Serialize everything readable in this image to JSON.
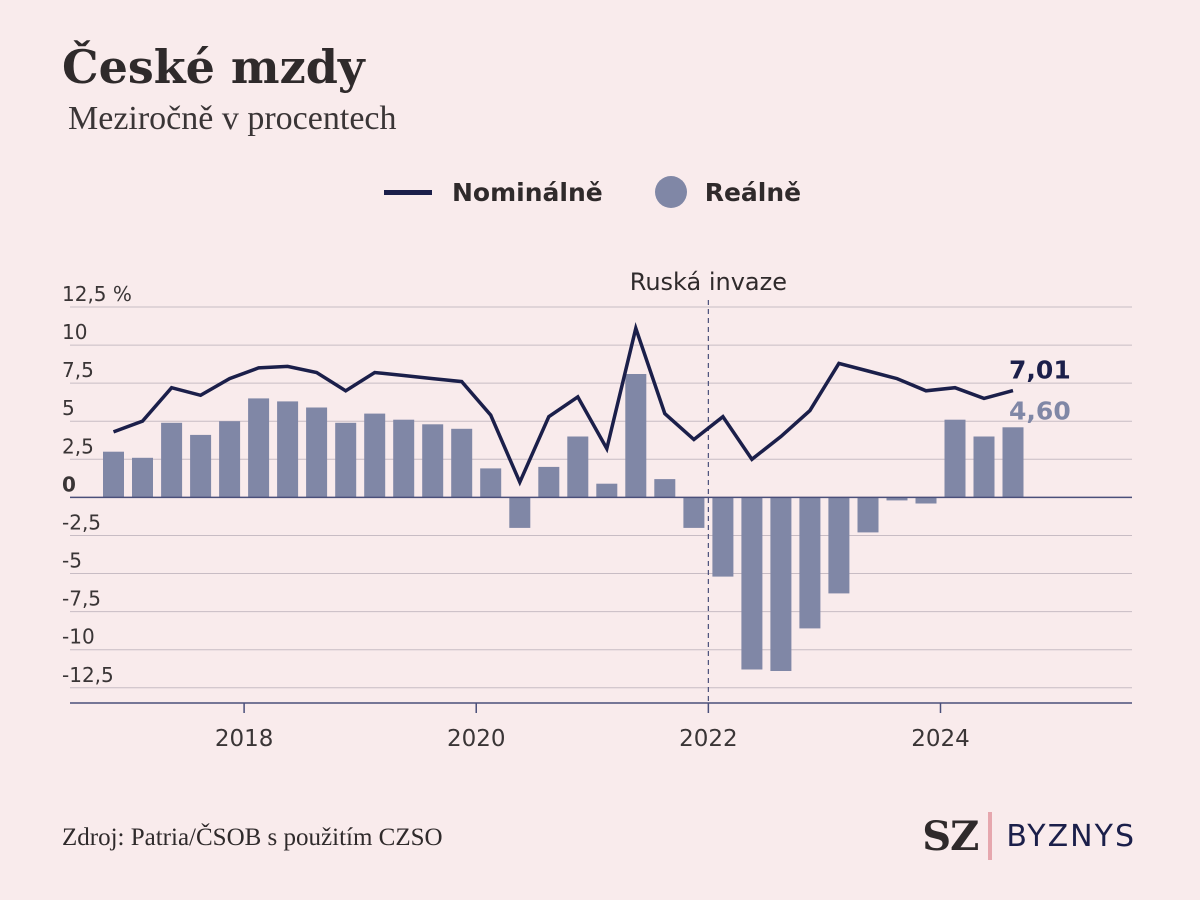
{
  "header": {
    "title": "České mzdy",
    "subtitle": "Meziročně v procentech"
  },
  "legend": {
    "nominal_label": "Nominálně",
    "real_label": "Reálně"
  },
  "colors": {
    "background": "#f9ebec",
    "nominal_line": "#1b1f4a",
    "real_bar": "#8087a6",
    "grid": "#c8bcc4",
    "axis": "#4a4f7a",
    "brand_bar": "#e6a7ae"
  },
  "chart_data": {
    "type": "bar",
    "title": "České mzdy",
    "subtitle": "Meziročně v procentech",
    "ylim": [
      -13.5,
      12.5
    ],
    "y_ticks": [
      {
        "value": 12.5,
        "label": "12,5 %"
      },
      {
        "value": 10,
        "label": "10"
      },
      {
        "value": 7.5,
        "label": "7,5"
      },
      {
        "value": 5,
        "label": "5"
      },
      {
        "value": 2.5,
        "label": "2,5"
      },
      {
        "value": 0,
        "label": "0"
      },
      {
        "value": -2.5,
        "label": "-2,5"
      },
      {
        "value": -5,
        "label": "-5"
      },
      {
        "value": -7.5,
        "label": "-7,5"
      },
      {
        "value": -10,
        "label": "-10"
      },
      {
        "value": -12.5,
        "label": "-12,5"
      }
    ],
    "xlim": [
      2016.5,
      2025.65
    ],
    "x_ticks": [
      {
        "value": 2018,
        "label": "2018"
      },
      {
        "value": 2020,
        "label": "2020"
      },
      {
        "value": 2022,
        "label": "2022"
      },
      {
        "value": 2024,
        "label": "2024"
      }
    ],
    "grid": true,
    "legend_position": "top-center",
    "quarters": [
      2016.875,
      2017.125,
      2017.375,
      2017.625,
      2017.875,
      2018.125,
      2018.375,
      2018.625,
      2018.875,
      2019.125,
      2019.375,
      2019.625,
      2019.875,
      2020.125,
      2020.375,
      2020.625,
      2020.875,
      2021.125,
      2021.375,
      2021.625,
      2021.875,
      2022.125,
      2022.375,
      2022.625,
      2022.875,
      2023.125,
      2023.375,
      2023.625,
      2023.875,
      2024.125,
      2024.375,
      2024.625
    ],
    "series": [
      {
        "name": "Nominálně",
        "kind": "line",
        "values": [
          4.3,
          5.0,
          7.2,
          6.7,
          7.8,
          8.5,
          8.6,
          8.2,
          7.0,
          8.2,
          8.0,
          7.8,
          7.6,
          5.4,
          1.0,
          5.3,
          6.6,
          3.2,
          11.1,
          5.5,
          3.8,
          5.3,
          2.5,
          4.0,
          5.7,
          8.8,
          8.3,
          7.8,
          7.0,
          7.2,
          6.5,
          7.01
        ]
      },
      {
        "name": "Reálně",
        "kind": "bar",
        "values": [
          3.0,
          2.6,
          4.9,
          4.1,
          5.0,
          6.5,
          6.3,
          5.9,
          4.9,
          5.5,
          5.1,
          4.8,
          4.5,
          1.9,
          -2.0,
          2.0,
          4.0,
          0.9,
          8.1,
          1.2,
          -2.0,
          -5.2,
          -11.3,
          -11.4,
          -8.6,
          -6.3,
          -2.3,
          -0.2,
          -0.4,
          5.1,
          4.0,
          4.6
        ]
      }
    ],
    "annotations": {
      "invasion_label": "Ruská invaze",
      "invasion_x": 2022.0,
      "last_nominal_label": "7,01",
      "last_real_label": "4,60"
    }
  },
  "footer": {
    "source": "Zdroj: Patria/ČSOB s použitím CZSO",
    "brand_mark": "SZ",
    "brand_name": "BYZNYS"
  }
}
